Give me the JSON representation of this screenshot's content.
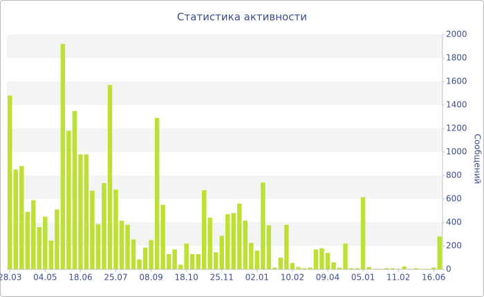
{
  "chart_data": {
    "type": "bar",
    "title": "Статистика активности",
    "y_label": "Сообщений",
    "categories": [
      "28.03",
      null,
      null,
      null,
      null,
      null,
      "04.05",
      null,
      null,
      null,
      null,
      null,
      "18.06",
      null,
      null,
      null,
      null,
      null,
      "25.07",
      null,
      null,
      null,
      null,
      null,
      "08.09",
      null,
      null,
      null,
      null,
      null,
      "18.10",
      null,
      null,
      null,
      null,
      null,
      "25.11",
      null,
      null,
      null,
      null,
      null,
      "02.01",
      null,
      null,
      null,
      null,
      null,
      "10.02",
      null,
      null,
      null,
      null,
      null,
      "09.04",
      null,
      null,
      null,
      null,
      null,
      "05.01",
      null,
      null,
      null,
      null,
      null,
      "11.02",
      null,
      null,
      null,
      null,
      null,
      "16.06",
      null
    ],
    "values": [
      1480,
      850,
      880,
      490,
      590,
      360,
      450,
      245,
      510,
      1920,
      1180,
      1350,
      980,
      980,
      670,
      385,
      735,
      1570,
      680,
      415,
      380,
      255,
      85,
      185,
      250,
      1290,
      550,
      130,
      170,
      40,
      220,
      130,
      130,
      675,
      440,
      145,
      285,
      470,
      480,
      560,
      415,
      225,
      160,
      740,
      375,
      15,
      100,
      380,
      55,
      20,
      10,
      15,
      170,
      180,
      140,
      60,
      15,
      220,
      10,
      10,
      615,
      20,
      5,
      5,
      10,
      10,
      5,
      25,
      5,
      10,
      5,
      5,
      15,
      280
    ],
    "color": "#bde034",
    "ylim": [
      0,
      2000
    ],
    "yticks": [
      0,
      200,
      400,
      600,
      800,
      1000,
      1200,
      1400,
      1600,
      1800,
      2000
    ],
    "grid": true
  }
}
